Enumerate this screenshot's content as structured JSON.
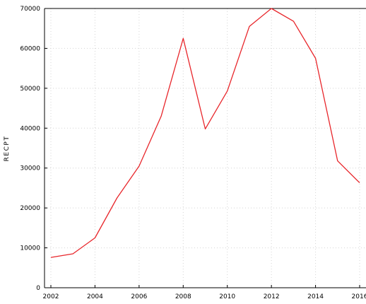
{
  "chart_data": {
    "type": "line",
    "ylabel": "RECPT",
    "xlabel": "",
    "title": "",
    "x_ticks": [
      "2002",
      "2004",
      "2006",
      "2008",
      "2010",
      "2012",
      "2014",
      "2016"
    ],
    "y_ticks": [
      "0",
      "10000",
      "20000",
      "30000",
      "40000",
      "50000",
      "60000",
      "70000"
    ],
    "xlim": [
      2002,
      2016
    ],
    "ylim": [
      0,
      70000
    ],
    "grid": true,
    "legend": "none",
    "series": [
      {
        "color": "#e8262b",
        "x": [
          2002,
          2003,
          2004,
          2005,
          2006,
          2007,
          2008,
          2009,
          2010,
          2011,
          2012,
          2013,
          2014,
          2015,
          2016
        ],
        "values": [
          7600,
          8500,
          12500,
          22500,
          30500,
          43000,
          62500,
          39800,
          49300,
          65500,
          70000,
          66800,
          57500,
          31800,
          26300
        ]
      }
    ]
  }
}
